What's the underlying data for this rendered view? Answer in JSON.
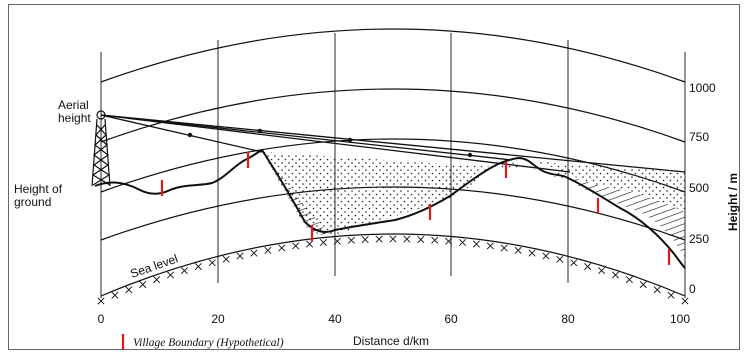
{
  "labels": {
    "aerial_height": [
      "Aerial",
      "height"
    ],
    "height_of_ground": [
      "Height of",
      "ground"
    ],
    "sea_level": "Sea level",
    "x_axis": "Distance d/km",
    "y_axis": "Height / m",
    "legend": "Village Boundary (Hypothetical)"
  },
  "x_ticks": [
    "0",
    "20",
    "40",
    "60",
    "80",
    "100"
  ],
  "y_ticks": [
    "1000",
    "750",
    "500",
    "250",
    "0"
  ],
  "colors": {
    "line": "#111111",
    "marker": "#e0191c"
  }
}
